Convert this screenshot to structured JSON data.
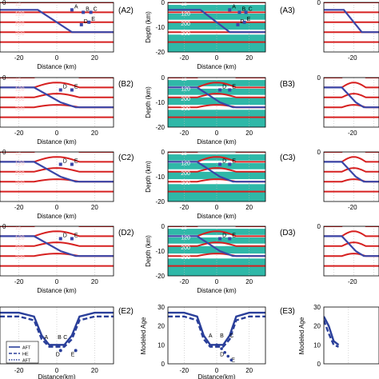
{
  "panels": [
    {
      "id": "A2",
      "label": "(A2)"
    },
    {
      "id": "A3",
      "label": "(A3)"
    },
    {
      "id": "B2",
      "label": "(B2)"
    },
    {
      "id": "B3",
      "label": "(B3)"
    },
    {
      "id": "C2",
      "label": "(C2)"
    },
    {
      "id": "C3",
      "label": "(C3)"
    },
    {
      "id": "D2",
      "label": "(D2)"
    },
    {
      "id": "D3",
      "label": "(D3)"
    },
    {
      "id": "E2",
      "label": "(E2)"
    },
    {
      "id": "E3",
      "label": "(E3)"
    }
  ],
  "axes": {
    "x_label": "Distance (km)",
    "x_label_bottom": "Distance(km)",
    "depth_label": "Depth (km)",
    "age_label": "Modeled Age",
    "x_ticks": [
      "-20",
      "0",
      "20"
    ],
    "depth_ticks": [
      "0",
      "-10",
      "-20"
    ],
    "age_ticks": [
      "30",
      "20",
      "10",
      "0"
    ],
    "left_col_depth_ticks": [
      "0",
      "0",
      "0",
      "0"
    ]
  },
  "isotherms": [
    "15",
    "120",
    "200",
    "300"
  ],
  "points": [
    "A",
    "B",
    "C",
    "D",
    "E"
  ],
  "legend": [
    {
      "label": "AFT",
      "style": "solid"
    },
    {
      "label": "HE",
      "style": "dashed"
    },
    {
      "label": "AFT",
      "style": "dotted"
    }
  ],
  "colors": {
    "isotherm": "#d62020",
    "fault": "#3a46a8",
    "crust_fill": "#2fb8a8",
    "topography": "#777777",
    "age_curve": "#2a3f9a"
  },
  "chart_data": [
    {
      "type": "line",
      "panel": "E2",
      "xlabel": "Distance(km)",
      "ylabel": "Modeled Age",
      "xlim": [
        -30,
        30
      ],
      "ylim": [
        0,
        30
      ],
      "x": [
        -30,
        -20,
        -12,
        -8,
        -4,
        0,
        4,
        8,
        12,
        20,
        30
      ],
      "series": [
        {
          "name": "AFT",
          "values": [
            27,
            27,
            25,
            15,
            10,
            10,
            10,
            15,
            25,
            27,
            27
          ]
        },
        {
          "name": "HE",
          "values": [
            25,
            25,
            23,
            13,
            9,
            9,
            9,
            13,
            23,
            25,
            25
          ]
        }
      ],
      "annotations": [
        "A",
        "B",
        "C",
        "D",
        "E"
      ]
    },
    {
      "type": "line",
      "panel": "E3",
      "xlabel": "",
      "ylabel": "Modeled Age",
      "xlim": [
        -30,
        30
      ],
      "ylim": [
        0,
        30
      ],
      "x": [
        -30,
        -28,
        -26,
        -24
      ],
      "series": [
        {
          "name": "AFT",
          "values": [
            25,
            20,
            12,
            10
          ]
        },
        {
          "name": "HE",
          "values": [
            23,
            16,
            10,
            9
          ]
        }
      ]
    }
  ]
}
